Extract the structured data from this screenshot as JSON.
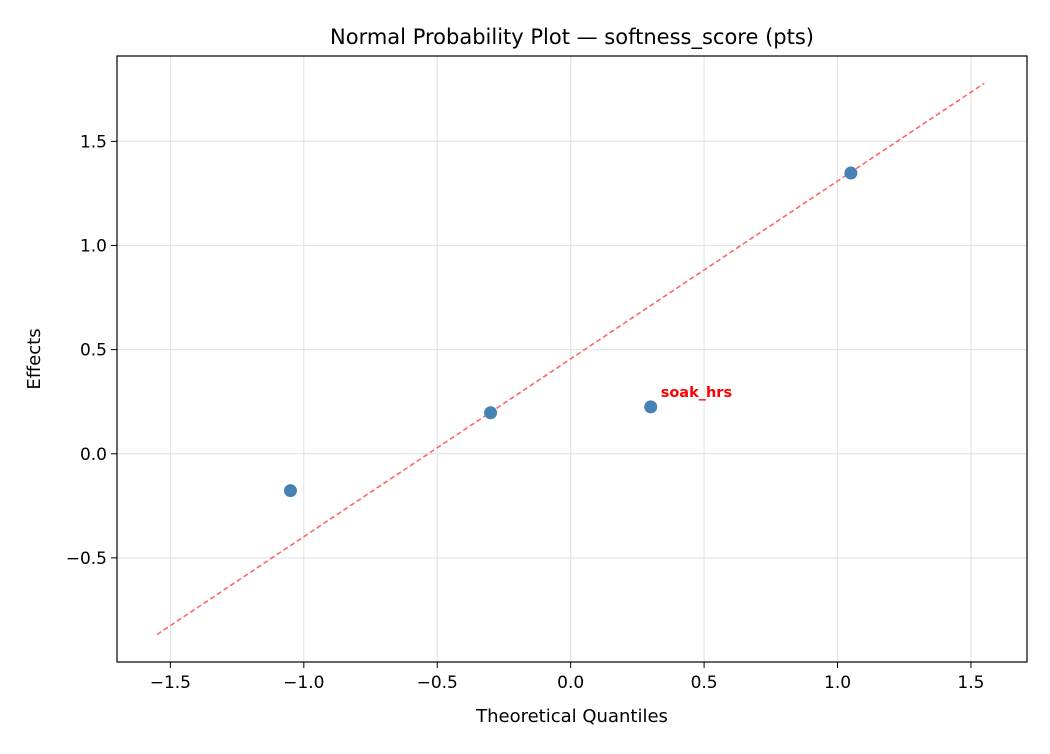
{
  "chart_data": {
    "type": "scatter",
    "title": "Normal Probability Plot — softness_score (pts)",
    "xlabel": "Theoretical Quantiles",
    "ylabel": "Effects",
    "xlim": [
      -1.7,
      1.71
    ],
    "ylim": [
      -1.0,
      1.91
    ],
    "xticks": [
      -1.5,
      -1.0,
      -0.5,
      0.0,
      0.5,
      1.0,
      1.5
    ],
    "xtick_labels": [
      "−1.5",
      "−1.0",
      "−0.5",
      "0.0",
      "0.5",
      "1.0",
      "1.5"
    ],
    "yticks": [
      -0.5,
      0.0,
      0.5,
      1.0,
      1.5
    ],
    "ytick_labels": [
      "−0.5",
      "0.0",
      "0.5",
      "1.0",
      "1.5"
    ],
    "grid": true,
    "points": [
      {
        "x": -1.05,
        "y": -0.177
      },
      {
        "x": -0.3,
        "y": 0.197
      },
      {
        "x": 0.3,
        "y": 0.225,
        "label": "soak_hrs"
      },
      {
        "x": 1.05,
        "y": 1.348
      }
    ],
    "reference_line": {
      "x": [
        -1.55,
        1.55
      ],
      "y": [
        -0.868,
        1.779
      ]
    },
    "colors": {
      "points": "#4682b4",
      "reference_line": "#ff6666",
      "annotation": "#ff0000",
      "grid": "#e5e5e5"
    }
  }
}
